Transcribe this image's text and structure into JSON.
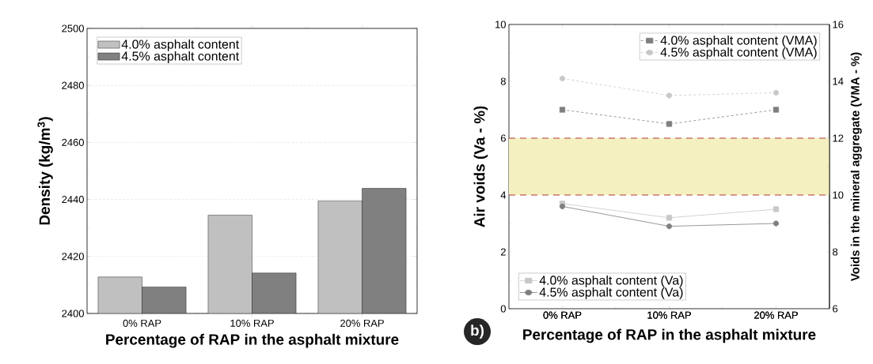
{
  "chart_data": [
    {
      "type": "bar",
      "categories": [
        "0% RAP",
        "10% RAP",
        "20% RAP"
      ],
      "xlabel": "Percentage of RAP in the asphalt mixture",
      "ylabel": "Density (kg/m$^{3}$)",
      "series": [
        {
          "name": "4.0% asphalt content",
          "color": "#c0c0c0",
          "values": [
            2412.8,
            2434.5,
            2439.5
          ]
        },
        {
          "name": "4.5% asphalt content",
          "color": "#808080",
          "values": [
            2409.3,
            2414.2,
            2443.9
          ]
        }
      ],
      "ylim": [
        2400,
        2500
      ],
      "yticks": [
        2400,
        2420,
        2440,
        2460,
        2480,
        2500
      ],
      "grid": "y",
      "legend": "top left"
    },
    {
      "type": "line",
      "categories": [
        "0% RAP",
        "10% RAP",
        "20% RAP"
      ],
      "legend": "bottom left",
      "xlabel": "Percentage of RAP in the asphalt mixture",
      "ylabel": "Air voids (Va - %)",
      "y2label": "Voids in the mineral aggregate (VMA - %)",
      "ylim": [
        0,
        10
      ],
      "yticks": [
        0,
        2,
        4,
        6,
        8,
        10
      ],
      "y2lim": [
        6,
        16
      ],
      "y2ticks": [
        6,
        8,
        10,
        12,
        14,
        16
      ],
      "series": [
        {
          "name": "4.0% asphalt content (VMA)",
          "axis": "y2",
          "color": "#7f7f7f",
          "marker": "square",
          "line_style": "dashed",
          "values": [
            13.0,
            12.5,
            13.0
          ]
        },
        {
          "name": "4.5% asphalt content (VMA)",
          "axis": "y2",
          "color": "#c8c8c8",
          "marker": "circle",
          "line_style": "dashed",
          "values": [
            14.1,
            13.5,
            13.6
          ]
        },
        {
          "name": "4.0% asphalt content (Va)",
          "color": "#c8c8c8",
          "marker": "square",
          "line_style": "solid",
          "values": [
            3.7,
            3.2,
            3.5
          ]
        },
        {
          "name": "4.5% asphalt content (Va)",
          "color": "#7f7f7f",
          "marker": "circle",
          "line_style": "solid",
          "values": [
            3.6,
            2.9,
            3.0
          ]
        }
      ],
      "bands": [
        {
          "axis": "y",
          "from": 4,
          "to": 6,
          "color": "#f5f0c0"
        }
      ],
      "ref_lines": [
        {
          "axis": "y",
          "value": 4,
          "color": "#b03a2e",
          "line_style": "dashed"
        },
        {
          "axis": "y",
          "value": 6,
          "color": "#b03a2e",
          "line_style": "dashed"
        }
      ],
      "annotations": [
        "b)"
      ]
    }
  ]
}
